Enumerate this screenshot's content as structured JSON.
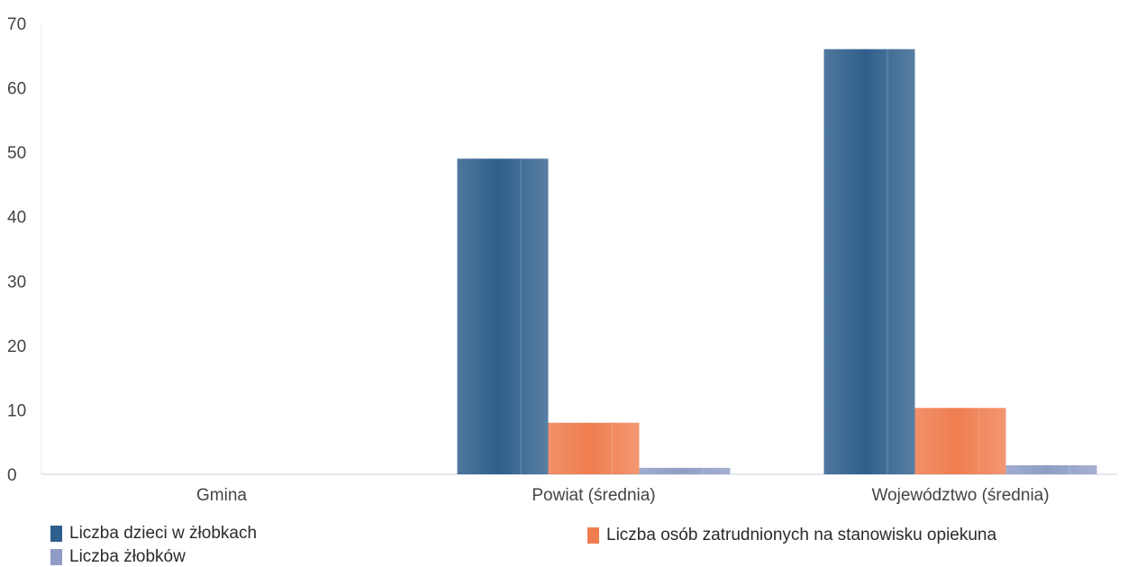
{
  "chart_data": {
    "type": "bar",
    "categories": [
      "Gmina",
      "Powiat (średnia)",
      "Województwo (średnia)"
    ],
    "series": [
      {
        "name": "Liczba dzieci w żłobkach",
        "values": [
          0,
          49,
          66
        ],
        "color": "#2f5f8c"
      },
      {
        "name": "Liczba osób zatrudnionych na stanowisku opiekuna",
        "values": [
          0,
          8,
          10.3
        ],
        "color": "#ef7d4f"
      },
      {
        "name": "Liczba żłobków",
        "values": [
          0,
          1,
          1.4
        ],
        "color": "#8f9dc6"
      }
    ],
    "ylim": [
      0,
      70
    ],
    "yticks": [
      "0",
      "10",
      "20",
      "30",
      "40",
      "50",
      "60",
      "70"
    ],
    "grid": false,
    "legend": "bottom",
    "title": "",
    "xlabel": "",
    "ylabel": ""
  }
}
